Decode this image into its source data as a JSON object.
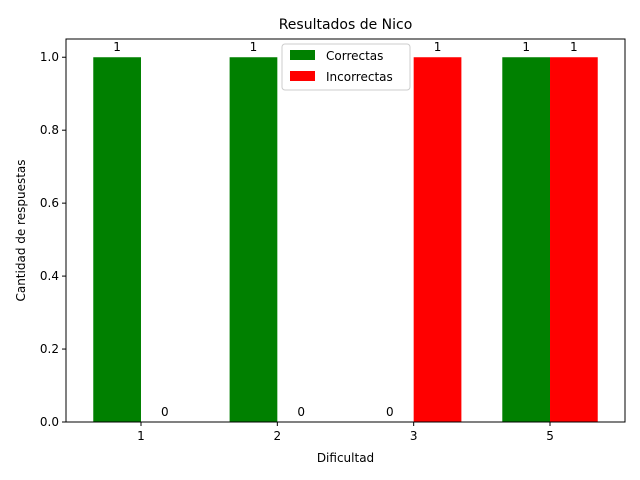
{
  "chart_data": {
    "type": "bar",
    "title": "Resultados de Nico",
    "xlabel": "Dificultad",
    "ylabel": "Cantidad de respuestas",
    "categories": [
      "1",
      "2",
      "3",
      "5"
    ],
    "series": [
      {
        "name": "Correctas",
        "values": [
          1,
          1,
          0,
          1
        ],
        "color": "#008000"
      },
      {
        "name": "Incorrectas",
        "values": [
          0,
          0,
          1,
          1
        ],
        "color": "#ff0000"
      }
    ],
    "data_labels": [
      [
        "1",
        "1",
        "0",
        "1"
      ],
      [
        "0",
        "0",
        "1",
        "1"
      ]
    ],
    "ylim": [
      0,
      1.05
    ],
    "yticks": [
      "0.0",
      "0.2",
      "0.4",
      "0.6",
      "0.8",
      "1.0"
    ],
    "legend_position": "top-center",
    "grid": false
  }
}
